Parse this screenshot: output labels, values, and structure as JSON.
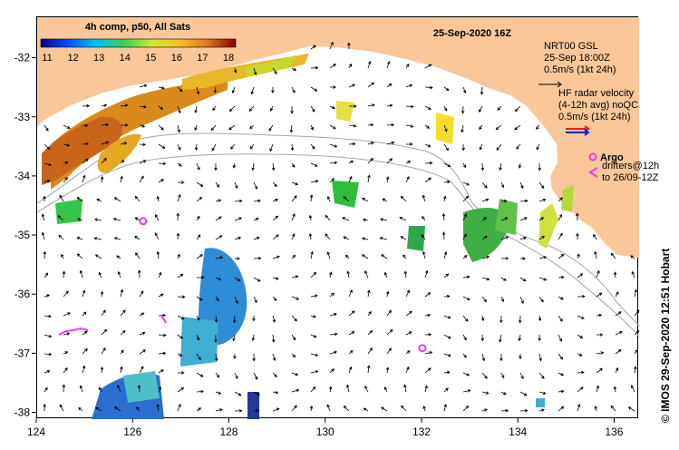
{
  "title": "25-Sep-2020 16Z",
  "colorbar": {
    "label": "4h comp, p50, All Sats",
    "ticks": [
      "11",
      "12",
      "13",
      "14",
      "15",
      "16",
      "17",
      "18"
    ]
  },
  "axes": {
    "x_ticks": [
      "124",
      "126",
      "128",
      "130",
      "132",
      "134",
      "136"
    ],
    "y_ticks": [
      "-32",
      "-33",
      "-34",
      "-35",
      "-36",
      "-37",
      "-38"
    ],
    "lon_range": [
      124,
      136.5
    ],
    "lat_range": [
      -38.1,
      -31.3
    ]
  },
  "legend": {
    "gsl_lines": [
      "NRT00 GSL",
      "25-Sep 18:00Z",
      "0.5m/s (1kt 24h)"
    ],
    "hf_lines": [
      "HF radar velocity",
      "(4-12h avg) noQC",
      "0.5m/s (1kt 24h)"
    ],
    "argo_label": "Argo",
    "drifter_lines": [
      "drifters@12h",
      "to 26/09-12Z"
    ]
  },
  "credit": "© IMOS 29-Sep-2020 12:51 Hobart",
  "colors": {
    "land": "#F9C79A",
    "argo": "#E83CE8",
    "hf_arrow_red": "#E0201C",
    "hf_arrow_blue": "#1E20C8",
    "contour": "#A6A6A6"
  },
  "argo_floats": [
    {
      "lon": 126.2,
      "lat": -34.75
    },
    {
      "lon": 132.0,
      "lat": -36.9
    }
  ]
}
